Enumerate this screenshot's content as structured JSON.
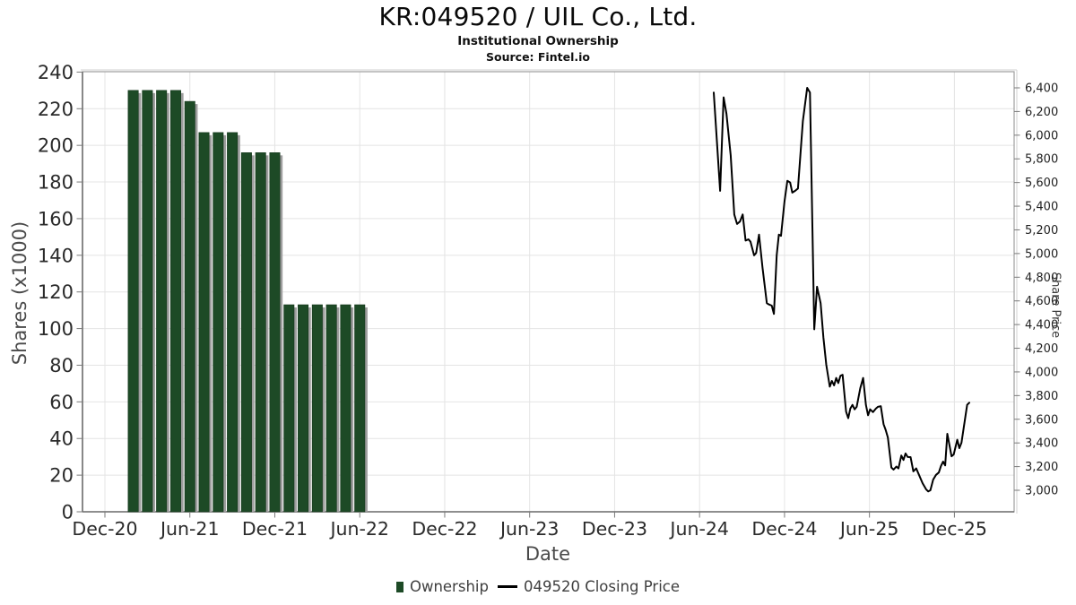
{
  "header": {
    "title": "KR:049520 / UIL Co., Ltd.",
    "subtitle": "Institutional Ownership",
    "source": "Source: Fintel.io"
  },
  "colors": {
    "bar": "#1d4a26",
    "bar_edge": "#14351b",
    "bar_shadow": "#9e9e9e",
    "line": "#000000",
    "grid": "#e4e4e4",
    "border": "#9e9e9e",
    "spine": "#6f6f6f",
    "tick_text": "#2b2b2b",
    "right_tick_text": "#222222"
  },
  "chart_data": {
    "type": [
      "bar",
      "line"
    ],
    "title": "KR:049520 / UIL Co., Ltd.",
    "subtitle": "Institutional Ownership",
    "source": "Source: Fintel.io",
    "grid": true,
    "x_axis": {
      "label": "Date",
      "tick_labels": [
        "Dec-20",
        "Jun-21",
        "Dec-21",
        "Jun-22",
        "Dec-22",
        "Jun-23",
        "Dec-23",
        "Jun-24",
        "Dec-24",
        "Jun-25",
        "Dec-25"
      ],
      "tick_months": [
        0,
        6,
        12,
        18,
        24,
        30,
        36,
        42,
        48,
        54,
        60
      ]
    },
    "y_left": {
      "label": "Shares (x1000)",
      "ticks": [
        0,
        20,
        40,
        60,
        80,
        100,
        120,
        140,
        160,
        180,
        200,
        220,
        240
      ],
      "range": [
        0,
        240
      ]
    },
    "y_right": {
      "label": "Share Price",
      "tick_labels": [
        "3,000",
        "3,200",
        "3,400",
        "3,600",
        "3,800",
        "4,000",
        "4,200",
        "4,400",
        "4,600",
        "4,800",
        "5,000",
        "5,200",
        "5,400",
        "5,600",
        "5,800",
        "6,000",
        "6,200",
        "6,400"
      ],
      "tick_values": [
        3000,
        3200,
        3400,
        3600,
        3800,
        4000,
        4200,
        4400,
        4600,
        4800,
        5000,
        5200,
        5400,
        5600,
        5800,
        6000,
        6200,
        6400
      ],
      "tick_range": [
        3000,
        6400
      ]
    },
    "series": [
      {
        "name": "Ownership",
        "type": "bar",
        "axis": "left",
        "dates": [
          "Feb-21",
          "Mar-21",
          "Apr-21",
          "May-21",
          "Jun-21",
          "Jul-21",
          "Aug-21",
          "Sep-21",
          "Oct-21",
          "Nov-21",
          "Dec-21",
          "Jan-22",
          "Feb-22",
          "Mar-22",
          "Apr-22",
          "May-22",
          "Jun-22"
        ],
        "months": [
          2,
          3,
          4,
          5,
          6,
          7,
          8,
          9,
          10,
          11,
          12,
          13,
          14,
          15,
          16,
          17,
          18
        ],
        "values": [
          230,
          230,
          230,
          230,
          224,
          207,
          207,
          207,
          196,
          196,
          196,
          113,
          113,
          113,
          113,
          113,
          113
        ]
      },
      {
        "name": "049520 Closing Price",
        "type": "line",
        "axis": "right",
        "points": [
          [
            43.0,
            6360
          ],
          [
            43.45,
            5530
          ],
          [
            43.7,
            6320
          ],
          [
            43.9,
            6180
          ],
          [
            44.2,
            5830
          ],
          [
            44.45,
            5330
          ],
          [
            44.65,
            5250
          ],
          [
            44.85,
            5270
          ],
          [
            45.05,
            5330
          ],
          [
            45.25,
            5110
          ],
          [
            45.45,
            5120
          ],
          [
            45.6,
            5100
          ],
          [
            45.85,
            4985
          ],
          [
            46.0,
            5005
          ],
          [
            46.2,
            5160
          ],
          [
            46.45,
            4880
          ],
          [
            46.75,
            4580
          ],
          [
            46.9,
            4570
          ],
          [
            47.1,
            4560
          ],
          [
            47.25,
            4490
          ],
          [
            47.45,
            4985
          ],
          [
            47.6,
            5160
          ],
          [
            47.75,
            5150
          ],
          [
            48.0,
            5440
          ],
          [
            48.2,
            5615
          ],
          [
            48.4,
            5600
          ],
          [
            48.55,
            5515
          ],
          [
            48.75,
            5530
          ],
          [
            48.95,
            5550
          ],
          [
            49.3,
            6120
          ],
          [
            49.6,
            6400
          ],
          [
            49.8,
            6360
          ],
          [
            50.1,
            4360
          ],
          [
            50.3,
            4720
          ],
          [
            50.55,
            4580
          ],
          [
            50.75,
            4290
          ],
          [
            50.95,
            4060
          ],
          [
            51.2,
            3875
          ],
          [
            51.35,
            3924
          ],
          [
            51.5,
            3886
          ],
          [
            51.65,
            3949
          ],
          [
            51.8,
            3906
          ],
          [
            51.95,
            3967
          ],
          [
            52.1,
            3975
          ],
          [
            52.35,
            3664
          ],
          [
            52.5,
            3609
          ],
          [
            52.65,
            3690
          ],
          [
            52.8,
            3722
          ],
          [
            52.95,
            3684
          ],
          [
            53.1,
            3705
          ],
          [
            53.35,
            3862
          ],
          [
            53.55,
            3949
          ],
          [
            53.75,
            3722
          ],
          [
            53.9,
            3634
          ],
          [
            54.05,
            3684
          ],
          [
            54.25,
            3660
          ],
          [
            54.45,
            3690
          ],
          [
            54.6,
            3705
          ],
          [
            54.8,
            3710
          ],
          [
            55.0,
            3558
          ],
          [
            55.15,
            3508
          ],
          [
            55.3,
            3445
          ],
          [
            55.55,
            3192
          ],
          [
            55.7,
            3175
          ],
          [
            55.9,
            3200
          ],
          [
            56.05,
            3185
          ],
          [
            56.25,
            3294
          ],
          [
            56.4,
            3256
          ],
          [
            56.55,
            3311
          ],
          [
            56.7,
            3281
          ],
          [
            56.9,
            3280
          ],
          [
            57.1,
            3160
          ],
          [
            57.3,
            3185
          ],
          [
            57.5,
            3130
          ],
          [
            57.75,
            3060
          ],
          [
            58.0,
            3008
          ],
          [
            58.15,
            2990
          ],
          [
            58.3,
            3000
          ],
          [
            58.5,
            3090
          ],
          [
            58.7,
            3130
          ],
          [
            58.9,
            3150
          ],
          [
            59.05,
            3205
          ],
          [
            59.2,
            3242
          ],
          [
            59.35,
            3210
          ],
          [
            59.5,
            3477
          ],
          [
            59.65,
            3380
          ],
          [
            59.8,
            3287
          ],
          [
            59.95,
            3302
          ],
          [
            60.2,
            3427
          ],
          [
            60.35,
            3356
          ],
          [
            60.5,
            3402
          ],
          [
            60.9,
            3722
          ],
          [
            61.05,
            3740
          ]
        ]
      }
    ]
  },
  "legend": {
    "items": [
      {
        "label": "Ownership",
        "marker": "square",
        "color": "#1d4a26"
      },
      {
        "label": "049520 Closing Price",
        "marker": "line",
        "color": "#000000"
      }
    ]
  }
}
